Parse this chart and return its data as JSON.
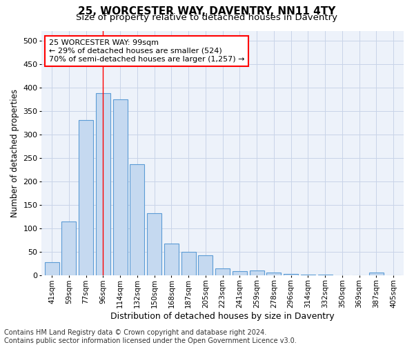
{
  "title_line1": "25, WORCESTER WAY, DAVENTRY, NN11 4TY",
  "title_line2": "Size of property relative to detached houses in Daventry",
  "xlabel": "Distribution of detached houses by size in Daventry",
  "ylabel": "Number of detached properties",
  "categories": [
    "41sqm",
    "59sqm",
    "77sqm",
    "96sqm",
    "114sqm",
    "132sqm",
    "150sqm",
    "168sqm",
    "187sqm",
    "205sqm",
    "223sqm",
    "241sqm",
    "259sqm",
    "278sqm",
    "296sqm",
    "314sqm",
    "332sqm",
    "350sqm",
    "369sqm",
    "387sqm",
    "405sqm"
  ],
  "values": [
    27,
    115,
    330,
    387,
    375,
    237,
    132,
    68,
    50,
    43,
    15,
    8,
    10,
    5,
    2,
    1,
    1,
    0,
    0,
    6,
    0
  ],
  "bar_color": "#c5d9f0",
  "bar_edge_color": "#5b9bd5",
  "bar_edge_width": 0.8,
  "grid_color": "#c8d4e8",
  "annotation_line1": "25 WORCESTER WAY: 99sqm",
  "annotation_line2": "← 29% of detached houses are smaller (524)",
  "annotation_line3": "70% of semi-detached houses are larger (1,257) →",
  "red_line_x": 3.0,
  "ylim": [
    0,
    520
  ],
  "yticks": [
    0,
    50,
    100,
    150,
    200,
    250,
    300,
    350,
    400,
    450,
    500
  ],
  "footnote_line1": "Contains HM Land Registry data © Crown copyright and database right 2024.",
  "footnote_line2": "Contains public sector information licensed under the Open Government Licence v3.0.",
  "bg_color": "#edf2fa"
}
